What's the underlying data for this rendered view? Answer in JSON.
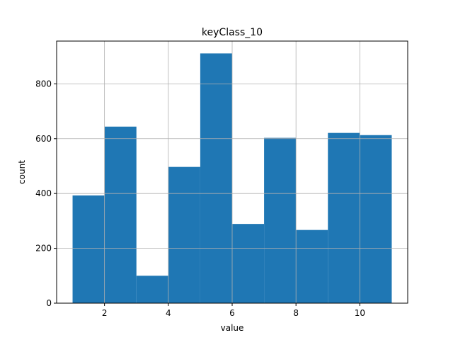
{
  "chart_data": {
    "type": "bar",
    "title": "keyClass_10",
    "xlabel": "value",
    "ylabel": "count",
    "bin_edges": [
      1,
      2,
      3,
      4,
      5,
      6,
      7,
      8,
      9,
      10,
      11
    ],
    "values": [
      393,
      644,
      100,
      497,
      911,
      289,
      603,
      267,
      621,
      613
    ],
    "xlim": [
      0.5,
      11.5
    ],
    "ylim": [
      0,
      956
    ],
    "xticks": [
      2,
      4,
      6,
      8,
      10
    ],
    "yticks": [
      0,
      200,
      400,
      600,
      800
    ],
    "grid": true,
    "bar_color": "#1f77b4",
    "grid_color": "#b0b0b0"
  }
}
